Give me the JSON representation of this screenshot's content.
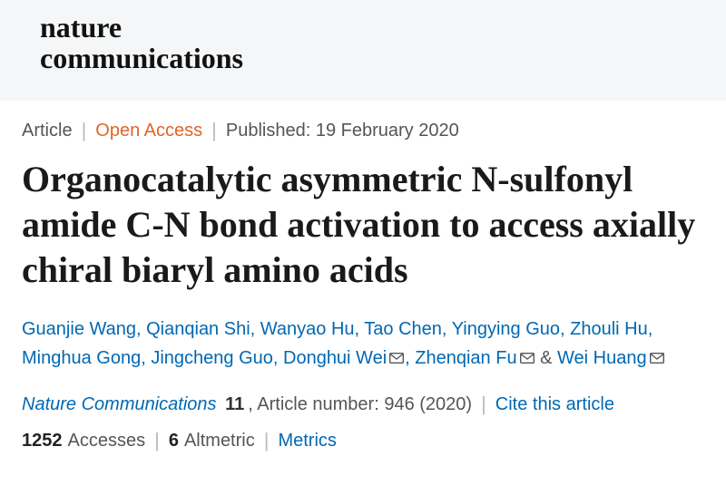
{
  "journal": {
    "name_line1": "nature",
    "name_line2": "communications"
  },
  "meta": {
    "type": "Article",
    "access": "Open Access",
    "published_label": "Published:",
    "published_date": "19 February 2020"
  },
  "title": "Organocatalytic asymmetric N-sulfonyl amide C-N bond activation to access axially chiral biaryl amino acids",
  "authors": {
    "list": [
      {
        "name": "Guanjie Wang",
        "corresponding": false
      },
      {
        "name": "Qianqian Shi",
        "corresponding": false
      },
      {
        "name": "Wanyao Hu",
        "corresponding": false
      },
      {
        "name": "Tao Chen",
        "corresponding": false
      },
      {
        "name": "Yingying Guo",
        "corresponding": false
      },
      {
        "name": "Zhouli Hu",
        "corresponding": false
      },
      {
        "name": "Minghua Gong",
        "corresponding": false
      },
      {
        "name": "Jingcheng Guo",
        "corresponding": false
      },
      {
        "name": "Donghui Wei",
        "corresponding": true
      },
      {
        "name": "Zhenqian Fu",
        "corresponding": true
      },
      {
        "name": "Wei Huang",
        "corresponding": true
      }
    ],
    "ampersand": "&"
  },
  "citation": {
    "journal": "Nature Communications",
    "volume": "11",
    "article_label": ", Article number:",
    "article_number": "946 (2020)",
    "cite_link": "Cite this article"
  },
  "metrics": {
    "accesses_count": "1252",
    "accesses_label": "Accesses",
    "altmetric_count": "6",
    "altmetric_label": "Altmetric",
    "metrics_link": "Metrics"
  },
  "colors": {
    "link": "#0068b3",
    "open_access": "#e06429",
    "text": "#555555",
    "header_bg": "#f5f6f7"
  }
}
